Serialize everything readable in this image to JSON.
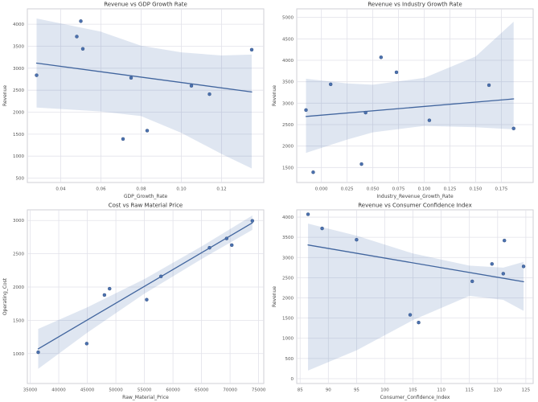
{
  "figure": {
    "background": "#ffffff"
  },
  "colors": {
    "point": "#4c72b0",
    "point_edge": "#3a5684",
    "line": "#41659e",
    "band": "rgba(76,114,176,0.18)",
    "grid": "#e2e2ea",
    "spine": "#cfcfd6",
    "title_text": "#333333",
    "tick_text": "#555555",
    "label_text": "#444444"
  },
  "chart_data": [
    {
      "type": "scatter",
      "title": "Revenue vs GDP Growth Rate",
      "xlabel": "GDP_Growth_Rate",
      "ylabel": "Revenue",
      "xlim": [
        0.0234,
        0.141
      ],
      "ylim": [
        400,
        4350
      ],
      "grid": true,
      "legend": false,
      "xticks": [
        0.04,
        0.06,
        0.08,
        0.1,
        0.12
      ],
      "xtick_labels": [
        "0.04",
        "0.06",
        "0.08",
        "0.10",
        "0.12"
      ],
      "yticks": [
        500,
        1000,
        1500,
        2000,
        2500,
        3000,
        3500,
        4000
      ],
      "ytick_labels": [
        "500",
        "1000",
        "1500",
        "2000",
        "2500",
        "3000",
        "3500",
        "4000"
      ],
      "points": [
        [
          0.028,
          2840
        ],
        [
          0.05,
          4070
        ],
        [
          0.048,
          3720
        ],
        [
          0.051,
          3440
        ],
        [
          0.075,
          2780
        ],
        [
          0.071,
          1390
        ],
        [
          0.083,
          1580
        ],
        [
          0.105,
          2600
        ],
        [
          0.114,
          2410
        ],
        [
          0.135,
          3420
        ]
      ],
      "regression_line": [
        [
          0.028,
          3115
        ],
        [
          0.135,
          2460
        ]
      ],
      "ci_band": {
        "x": [
          0.028,
          0.06,
          0.08,
          0.1,
          0.12,
          0.135
        ],
        "upper": [
          4130,
          3830,
          3510,
          3360,
          3290,
          3310
        ],
        "lower": [
          2105,
          2015,
          1910,
          1530,
          1050,
          720
        ]
      }
    },
    {
      "type": "scatter",
      "title": "Revenue vs Industry Growth Rate",
      "xlabel": "Industry_Revenue_Growth_Rate",
      "ylabel": "Revenue",
      "xlim": [
        -0.024,
        0.206
      ],
      "ylim": [
        1150,
        5200
      ],
      "grid": true,
      "legend": false,
      "xticks": [
        0.0,
        0.025,
        0.05,
        0.075,
        0.1,
        0.125,
        0.15,
        0.175
      ],
      "xtick_labels": [
        "0.000",
        "0.025",
        "0.050",
        "0.075",
        "0.100",
        "0.125",
        "0.150",
        "0.175"
      ],
      "yticks": [
        1500,
        2000,
        2500,
        3000,
        3500,
        4000,
        4500,
        5000
      ],
      "ytick_labels": [
        "1500",
        "2000",
        "2500",
        "3000",
        "3500",
        "4000",
        "4500",
        "5000"
      ],
      "points": [
        [
          -0.015,
          2840
        ],
        [
          0.058,
          4070
        ],
        [
          0.073,
          3720
        ],
        [
          0.009,
          3440
        ],
        [
          0.043,
          2780
        ],
        [
          -0.008,
          1390
        ],
        [
          0.039,
          1580
        ],
        [
          0.105,
          2600
        ],
        [
          0.187,
          2410
        ],
        [
          0.163,
          3420
        ]
      ],
      "regression_line": [
        [
          -0.015,
          2690
        ],
        [
          0.187,
          3100
        ]
      ],
      "ci_band": {
        "x": [
          -0.015,
          0.025,
          0.05,
          0.1,
          0.15,
          0.187
        ],
        "upper": [
          3570,
          3460,
          3430,
          3590,
          4090,
          4900
        ],
        "lower": [
          1840,
          2150,
          2320,
          2470,
          2440,
          2390
        ]
      }
    },
    {
      "type": "scatter",
      "title": "Cost vs Raw Material Price",
      "xlabel": "Raw_Material_Price",
      "ylabel": "Operating_Cost",
      "xlim": [
        34500,
        75900
      ],
      "ylim": [
        550,
        3160
      ],
      "grid": true,
      "legend": false,
      "xticks": [
        35000,
        40000,
        45000,
        50000,
        55000,
        60000,
        65000,
        70000,
        75000
      ],
      "xtick_labels": [
        "35000",
        "40000",
        "45000",
        "50000",
        "55000",
        "60000",
        "65000",
        "70000",
        "75000"
      ],
      "yticks": [
        1000,
        1500,
        2000,
        2500,
        3000
      ],
      "ytick_labels": [
        "1000",
        "1500",
        "2000",
        "2500",
        "3000"
      ],
      "points": [
        [
          36400,
          1020
        ],
        [
          44900,
          1150
        ],
        [
          48000,
          1880
        ],
        [
          48900,
          1975
        ],
        [
          55400,
          1810
        ],
        [
          57900,
          2160
        ],
        [
          66400,
          2590
        ],
        [
          69400,
          2730
        ],
        [
          70300,
          2630
        ],
        [
          73900,
          2995
        ]
      ],
      "regression_line": [
        [
          36400,
          1070
        ],
        [
          73900,
          2965
        ]
      ],
      "ci_band": {
        "x": [
          36400,
          45000,
          55000,
          65000,
          73900
        ],
        "upper": [
          1370,
          1695,
          2120,
          2610,
          3075
        ],
        "lower": [
          770,
          1315,
          1900,
          2420,
          2860
        ]
      }
    },
    {
      "type": "scatter",
      "title": "Revenue vs Consumer Confidence Index",
      "xlabel": "Consumer_Confidence_Index",
      "ylabel": "Revenue",
      "xlim": [
        84.4,
        126.3
      ],
      "ylim": [
        -120,
        4180
      ],
      "grid": true,
      "legend": false,
      "xticks": [
        85,
        90,
        95,
        100,
        105,
        110,
        115,
        120,
        125
      ],
      "xtick_labels": [
        "85",
        "90",
        "95",
        "100",
        "105",
        "110",
        "115",
        "120",
        "125"
      ],
      "yticks": [
        0,
        500,
        1000,
        1500,
        2000,
        2500,
        3000,
        3500,
        4000
      ],
      "ytick_labels": [
        "0",
        "500",
        "1000",
        "1500",
        "2000",
        "2500",
        "3000",
        "3500",
        "4000"
      ],
      "points": [
        [
          86.4,
          4070
        ],
        [
          88.9,
          3720
        ],
        [
          95.0,
          3440
        ],
        [
          104.5,
          1580
        ],
        [
          106.0,
          1390
        ],
        [
          115.5,
          2410
        ],
        [
          119.0,
          2840
        ],
        [
          121.0,
          2600
        ],
        [
          121.2,
          3420
        ],
        [
          124.6,
          2780
        ]
      ],
      "regression_line": [
        [
          86.4,
          3310
        ],
        [
          124.6,
          2400
        ]
      ],
      "ci_band": {
        "x": [
          86.4,
          95,
          105,
          115,
          121,
          124.6
        ],
        "upper": [
          3840,
          3540,
          3100,
          2800,
          2750,
          2890
        ],
        "lower": [
          200,
          700,
          1450,
          2050,
          1950,
          1680
        ]
      }
    }
  ]
}
